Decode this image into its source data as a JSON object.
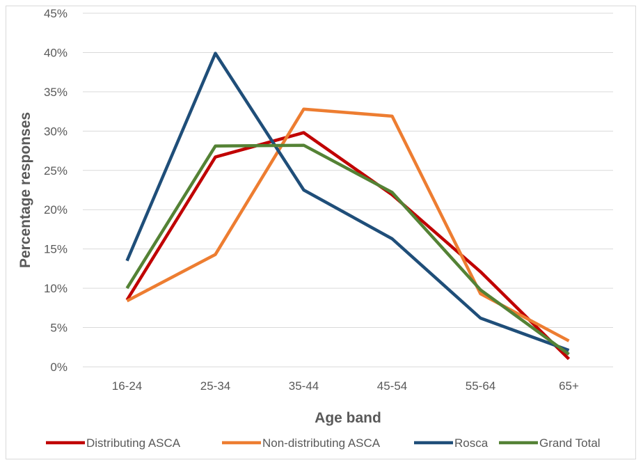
{
  "chart_data": {
    "type": "line",
    "title": "",
    "xlabel": "Age band",
    "ylabel": "Percentage responses",
    "categories": [
      "16-24",
      "25-34",
      "35-44",
      "45-54",
      "55-64",
      "65+"
    ],
    "ylim": [
      0,
      0.45
    ],
    "yticks": [
      0,
      0.05,
      0.1,
      0.15,
      0.2,
      0.25,
      0.3,
      0.35,
      0.4,
      0.45
    ],
    "ytick_labels": [
      "0%",
      "5%",
      "10%",
      "15%",
      "20%",
      "25%",
      "30%",
      "35%",
      "40%",
      "45%"
    ],
    "grid": true,
    "legend_position": "bottom",
    "series": [
      {
        "name": "Distributing ASCA",
        "color": "#c00000",
        "values": [
          0.085,
          0.267,
          0.298,
          0.219,
          0.121,
          0.01
        ]
      },
      {
        "name": "Non-distributing ASCA",
        "color": "#ed7d31",
        "values": [
          0.084,
          0.143,
          0.328,
          0.319,
          0.093,
          0.033
        ]
      },
      {
        "name": "Rosca",
        "color": "#1f4e79",
        "values": [
          0.135,
          0.399,
          0.225,
          0.163,
          0.062,
          0.021
        ]
      },
      {
        "name": "Grand Total",
        "color": "#548235",
        "values": [
          0.1,
          0.281,
          0.282,
          0.222,
          0.098,
          0.016
        ]
      }
    ]
  }
}
